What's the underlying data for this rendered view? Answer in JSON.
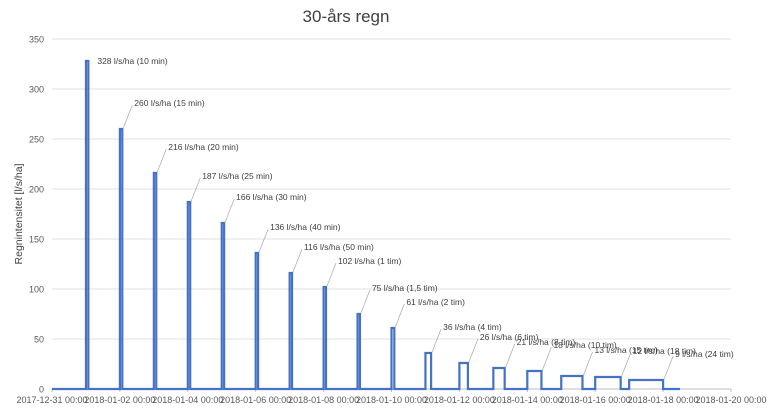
{
  "chart_data": {
    "type": "line",
    "title": "30-års regn",
    "ylabel": "Regnintensitet [l/s/ha]",
    "xlabel": "",
    "ylim": [
      0,
      350
    ],
    "yticks": [
      0,
      50,
      100,
      150,
      200,
      250,
      300,
      350
    ],
    "xlim": [
      "2017-12-31 00:00",
      "2018-01-20 00:00"
    ],
    "xtick_labels": [
      "2017-12-31 00:00",
      "2018-01-02 00:00",
      "2018-01-04 00:00",
      "2018-01-06 00:00",
      "2018-01-08 00:00",
      "2018-01-10 00:00",
      "2018-01-12 00:00",
      "2018-01-14 00:00",
      "2018-01-16 00:00",
      "2018-01-18 00:00",
      "2018-01-20 00:00"
    ],
    "grid": true,
    "legend": "none",
    "series": [
      {
        "color": "#4472c4",
        "events": [
          {
            "start": "2018-01-01 00:00",
            "value": 328,
            "duration_min": 10,
            "label": "328 l/s/ha (10 min)"
          },
          {
            "start": "2018-01-02 00:00",
            "value": 260,
            "duration_min": 15,
            "label": "260 l/s/ha (15 min)"
          },
          {
            "start": "2018-01-03 00:00",
            "value": 216,
            "duration_min": 20,
            "label": "216 l/s/ha  (20 min)"
          },
          {
            "start": "2018-01-04 00:00",
            "value": 187,
            "duration_min": 25,
            "label": "187 l/s/ha (25 min)"
          },
          {
            "start": "2018-01-05 00:00",
            "value": 166,
            "duration_min": 30,
            "label": "166 l/s/ha (30 min)"
          },
          {
            "start": "2018-01-06 00:00",
            "value": 136,
            "duration_min": 40,
            "label": "136 l/s/ha (40 min)"
          },
          {
            "start": "2018-01-07 00:00",
            "value": 116,
            "duration_min": 50,
            "label": "116 l/s/ha (50 min)"
          },
          {
            "start": "2018-01-08 00:00",
            "value": 102,
            "duration_min": 60,
            "label": "102 l/s/ha (1 tim)"
          },
          {
            "start": "2018-01-09 00:00",
            "value": 75,
            "duration_min": 90,
            "label": "75 l/s/ha (1,5 tim)"
          },
          {
            "start": "2018-01-10 00:00",
            "value": 61,
            "duration_min": 120,
            "label": "61 l/s/ha (2 tim)"
          },
          {
            "start": "2018-01-11 00:00",
            "value": 36,
            "duration_min": 240,
            "label": "36 l/s/ha (4 tim)"
          },
          {
            "start": "2018-01-12 00:00",
            "value": 26,
            "duration_min": 360,
            "label": "26 l/s/ha (6 tim)"
          },
          {
            "start": "2018-01-13 00:00",
            "value": 21,
            "duration_min": 480,
            "label": "21 l/s/ha (8 tim)"
          },
          {
            "start": "2018-01-14 00:00",
            "value": 18,
            "duration_min": 600,
            "label": "18 l/s/ha (10 tim)"
          },
          {
            "start": "2018-01-15 00:00",
            "value": 13,
            "duration_min": 900,
            "label": "13 l/s/ha (15 tim)"
          },
          {
            "start": "2018-01-16 00:00",
            "value": 12,
            "duration_min": 1080,
            "label": "12 l/s/ha (18 tim)"
          },
          {
            "start": "2018-01-17 00:00",
            "value": 9,
            "duration_min": 1440,
            "label": "9 l/s/ha (24 tim)"
          }
        ],
        "end": "2018-01-18 12:00"
      }
    ]
  }
}
